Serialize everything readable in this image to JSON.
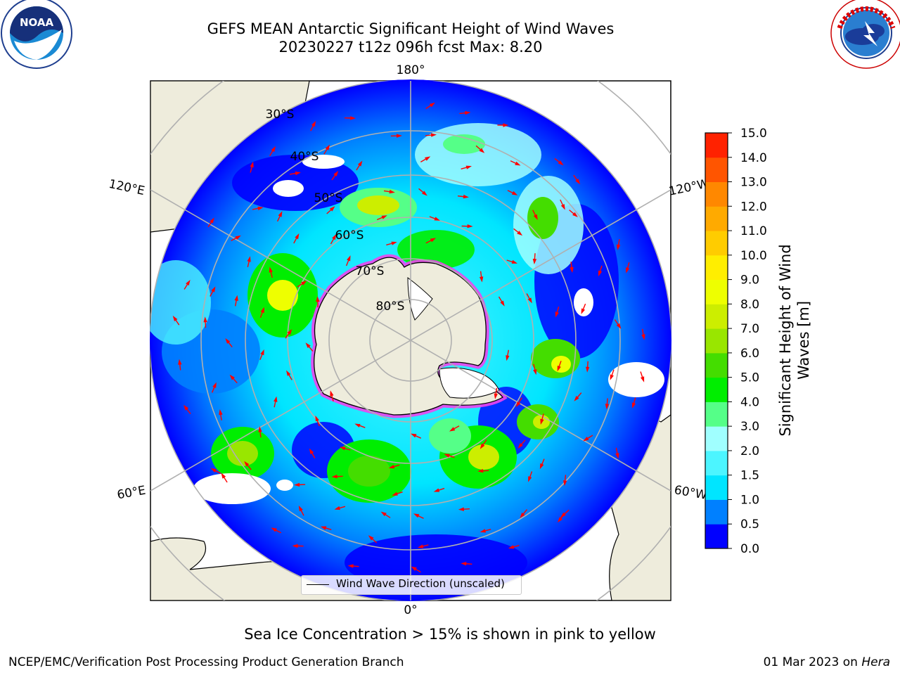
{
  "header": {
    "title_line1": "GEFS MEAN Antarctic Significant Height of Wind Waves",
    "title_line2": "20230227 t12z 096h fcst   Max: 8.20"
  },
  "logos": {
    "left": "noaa-logo",
    "left_text": "NOAA",
    "left_ring_text": "NATIONAL OCEANIC AND ATMOSPHERIC ADMINISTRATION · U.S. DEPARTMENT OF COMMERCE",
    "right": "national-weather-service-logo",
    "right_ring_text": "NATIONAL WEATHER SERVICE"
  },
  "map": {
    "projection": "south-polar-stereographic",
    "longitude_labels": {
      "top": "180°",
      "bottom": "0°",
      "upper_left": "120°E",
      "upper_right": "120°W",
      "lower_left": "60°E",
      "lower_right": "60°W"
    },
    "latitude_labels": [
      "30°S",
      "40°S",
      "50°S",
      "60°S",
      "70°S",
      "80°S"
    ],
    "legend_label": "Wind Wave Direction (unscaled)",
    "arrow_color": "#ff0000",
    "land_color": "#eeecdc",
    "ocean_low_color": "#0000ff"
  },
  "colorbar": {
    "label": "Significant Height of Wind Waves [m]",
    "label_line1": "Significant Height of Wind",
    "label_line2": "Waves [m]",
    "ticks": [
      "0.0",
      "0.5",
      "1.0",
      "1.5",
      "2.0",
      "3.0",
      "4.0",
      "5.0",
      "6.0",
      "7.0",
      "8.0",
      "9.0",
      "10.0",
      "11.0",
      "12.0",
      "13.0",
      "14.0",
      "15.0"
    ],
    "colors": [
      "#0000ff",
      "#0080ff",
      "#00e5ff",
      "#4cf5ff",
      "#a0ffff",
      "#55ff88",
      "#00ee00",
      "#44dd00",
      "#99e600",
      "#ccee00",
      "#eeff00",
      "#ffee00",
      "#ffcc00",
      "#ffaa00",
      "#ff8800",
      "#ff5500",
      "#ff2200"
    ]
  },
  "footer": {
    "caption": "Sea Ice Concentration > 15% is shown in pink to yellow",
    "left": "NCEP/EMC/Verification Post Processing Product Generation Branch",
    "right_date": "01 Mar 2023 on ",
    "right_host": "Hera"
  }
}
